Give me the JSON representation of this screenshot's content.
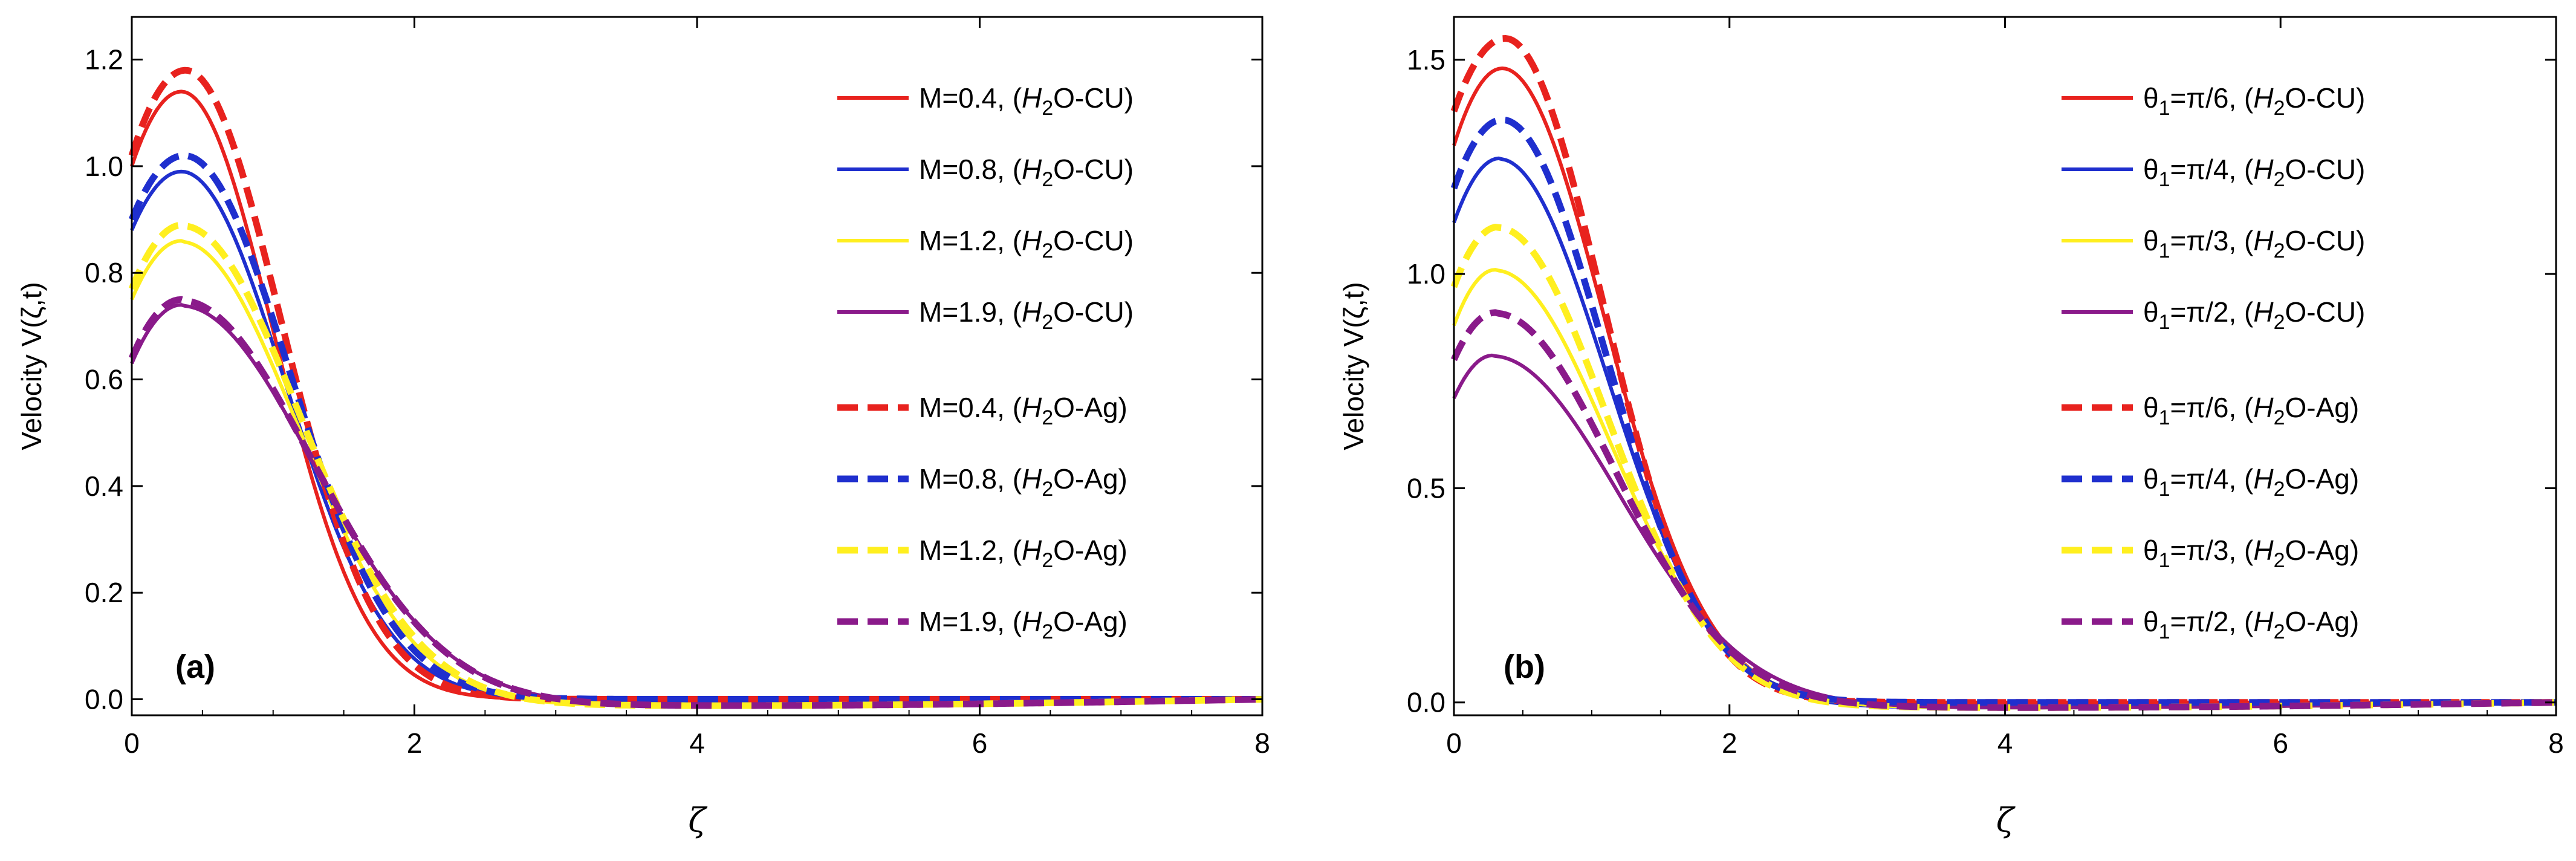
{
  "chart_data": [
    {
      "type": "line",
      "panel_label": "(a)",
      "xlabel": "ζ",
      "ylabel": "Velocity V(ζ,t)",
      "xlim": [
        0,
        8
      ],
      "ylim": [
        -0.03,
        1.28
      ],
      "xticks": [
        0,
        2,
        4,
        6,
        8
      ],
      "xtick_labels": [
        "0",
        "2",
        "4",
        "6",
        "8"
      ],
      "yticks": [
        0.0,
        0.2,
        0.4,
        0.6,
        0.8,
        1.0,
        1.2
      ],
      "ytick_labels": [
        "0.0",
        "0.2",
        "0.4",
        "0.6",
        "0.8",
        "1.0",
        "1.2"
      ],
      "legend_position": "top-right",
      "series": [
        {
          "name": "M=0.4, (H2O-CU)",
          "label_prefix": "M=0.4, (",
          "label_h": "H",
          "label_sub": "2",
          "label_suffix": "O-CU)",
          "color": "#e8221e",
          "style": "solid",
          "v0": 1.0,
          "peak_x": 0.35,
          "peak": 1.14,
          "decay": 0.92
        },
        {
          "name": "M=0.8, (H2O-CU)",
          "label_prefix": "M=0.8, (",
          "label_h": "H",
          "label_sub": "2",
          "label_suffix": "O-CU)",
          "color": "#1f2fce",
          "style": "solid",
          "v0": 0.88,
          "peak_x": 0.35,
          "peak": 0.99,
          "decay": 1.03
        },
        {
          "name": "M=1.2, (H2O-CU)",
          "label_prefix": "M=1.2, (",
          "label_h": "H",
          "label_sub": "2",
          "label_suffix": "O-CU)",
          "color": "#ffef1f",
          "style": "solid",
          "v0": 0.75,
          "peak_x": 0.35,
          "peak": 0.86,
          "decay": 1.16
        },
        {
          "name": "M=1.9, (H2O-CU)",
          "label_prefix": "M=1.9, (",
          "label_h": "H",
          "label_sub": "2",
          "label_suffix": "O-CU)",
          "color": "#8a1a8a",
          "style": "solid",
          "v0": 0.63,
          "peak_x": 0.35,
          "peak": 0.74,
          "decay": 1.32
        },
        {
          "name": "M=0.4, (H2O-Ag)",
          "label_prefix": "M=0.4, (",
          "label_h": "H",
          "label_sub": "2",
          "label_suffix": "O-Ag)",
          "color": "#e8221e",
          "style": "dashed",
          "v0": 1.02,
          "peak_x": 0.38,
          "peak": 1.18,
          "decay": 0.95
        },
        {
          "name": "M=0.8, (H2O-Ag)",
          "label_prefix": "M=0.8, (",
          "label_h": "H",
          "label_sub": "2",
          "label_suffix": "O-Ag)",
          "color": "#1f2fce",
          "style": "dashed",
          "v0": 0.9,
          "peak_x": 0.37,
          "peak": 1.02,
          "decay": 1.05
        },
        {
          "name": "M=1.2, (H2O-Ag)",
          "label_prefix": "M=1.2, (",
          "label_h": "H",
          "label_sub": "2",
          "label_suffix": "O-Ag)",
          "color": "#ffef1f",
          "style": "dashed",
          "v0": 0.77,
          "peak_x": 0.36,
          "peak": 0.89,
          "decay": 1.17
        },
        {
          "name": "M=1.9, (H2O-Ag)",
          "label_prefix": "M=1.9, (",
          "label_h": "H",
          "label_sub": "2",
          "label_suffix": "O-Ag)",
          "color": "#8a1a8a",
          "style": "dashed",
          "v0": 0.64,
          "peak_x": 0.35,
          "peak": 0.75,
          "decay": 1.31
        }
      ]
    },
    {
      "type": "line",
      "panel_label": "(b)",
      "xlabel": "ζ",
      "ylabel": "Velocity V(ζ,t)",
      "xlim": [
        0,
        8
      ],
      "ylim": [
        -0.03,
        1.6
      ],
      "xticks": [
        0,
        2,
        4,
        6,
        8
      ],
      "xtick_labels": [
        "0",
        "2",
        "4",
        "6",
        "8"
      ],
      "yticks": [
        0.0,
        0.5,
        1.0,
        1.5
      ],
      "ytick_labels": [
        "0.0",
        "0.5",
        "1.0",
        "1.5"
      ],
      "legend_position": "top-right",
      "series": [
        {
          "name": "θ1=π/6, (H2O-CU)",
          "label_prefix": "θ",
          "label_sub1": "1",
          "label_mid": "=π/6, (",
          "label_h": "H",
          "label_sub": "2",
          "label_suffix": "O-CU)",
          "color": "#e8221e",
          "style": "solid",
          "v0": 1.3,
          "peak_x": 0.35,
          "peak": 1.48,
          "decay": 1.05
        },
        {
          "name": "θ1=π/4, (H2O-CU)",
          "label_prefix": "θ",
          "label_sub1": "1",
          "label_mid": "=π/4, (",
          "label_h": "H",
          "label_sub": "2",
          "label_suffix": "O-CU)",
          "color": "#1f2fce",
          "style": "solid",
          "v0": 1.12,
          "peak_x": 0.33,
          "peak": 1.27,
          "decay": 1.1
        },
        {
          "name": "θ1=π/3, (H2O-CU)",
          "label_prefix": "θ",
          "label_sub1": "1",
          "label_mid": "=π/3, (",
          "label_h": "H",
          "label_sub": "2",
          "label_suffix": "O-CU)",
          "color": "#ffef1f",
          "style": "solid",
          "v0": 0.88,
          "peak_x": 0.3,
          "peak": 1.01,
          "decay": 1.18
        },
        {
          "name": "θ1=π/2, (H2O-CU)",
          "label_prefix": "θ",
          "label_sub1": "1",
          "label_mid": "=π/2, (",
          "label_h": "H",
          "label_sub": "2",
          "label_suffix": "O-CU)",
          "color": "#8a1a8a",
          "style": "solid",
          "v0": 0.71,
          "peak_x": 0.28,
          "peak": 0.81,
          "decay": 1.3
        },
        {
          "name": "θ1=π/6, (H2O-Ag)",
          "label_prefix": "θ",
          "label_sub1": "1",
          "label_mid": "=π/6, (",
          "label_h": "H",
          "label_sub": "2",
          "label_suffix": "O-Ag)",
          "color": "#e8221e",
          "style": "dashed",
          "v0": 1.38,
          "peak_x": 0.37,
          "peak": 1.55,
          "decay": 1.0
        },
        {
          "name": "θ1=π/4, (H2O-Ag)",
          "label_prefix": "θ",
          "label_sub1": "1",
          "label_mid": "=π/4, (",
          "label_h": "H",
          "label_sub": "2",
          "label_suffix": "O-Ag)",
          "color": "#1f2fce",
          "style": "dashed",
          "v0": 1.2,
          "peak_x": 0.35,
          "peak": 1.36,
          "decay": 1.05
        },
        {
          "name": "θ1=π/3, (H2O-Ag)",
          "label_prefix": "θ",
          "label_sub1": "1",
          "label_mid": "=π/3, (",
          "label_h": "H",
          "label_sub": "2",
          "label_suffix": "O-Ag)",
          "color": "#ffef1f",
          "style": "dashed",
          "v0": 0.97,
          "peak_x": 0.32,
          "peak": 1.11,
          "decay": 1.12
        },
        {
          "name": "θ1=π/2, (H2O-Ag)",
          "label_prefix": "θ",
          "label_sub1": "1",
          "label_mid": "=π/2, (",
          "label_h": "H",
          "label_sub": "2",
          "label_suffix": "O-Ag)",
          "color": "#8a1a8a",
          "style": "dashed",
          "v0": 0.8,
          "peak_x": 0.3,
          "peak": 0.91,
          "decay": 1.22
        }
      ]
    }
  ]
}
